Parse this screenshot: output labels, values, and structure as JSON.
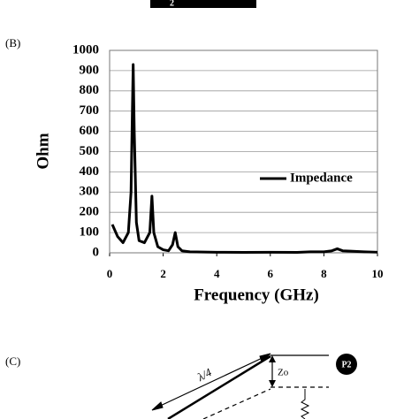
{
  "top_fragment": "2",
  "panels": {
    "b": "(B)",
    "c": "(C)"
  },
  "diagram": {
    "length_label": "λ/4",
    "impedance_label": "Zo",
    "port_label": "P2"
  },
  "chart_data": {
    "type": "line",
    "xlabel": "Frequency (GHz)",
    "ylabel": "Ohm",
    "x": [
      0.1,
      0.3,
      0.5,
      0.7,
      0.8,
      0.85,
      0.88,
      0.92,
      1.0,
      1.1,
      1.3,
      1.5,
      1.58,
      1.65,
      1.8,
      2.0,
      2.2,
      2.35,
      2.45,
      2.55,
      2.7,
      3.0,
      4.0,
      5.0,
      6.0,
      7.0,
      7.5,
      8.0,
      8.3,
      8.5,
      8.7,
      9.0,
      9.5,
      10.0
    ],
    "series": [
      {
        "name": "Impedance",
        "color": "#000000",
        "values": [
          140,
          80,
          50,
          100,
          300,
          700,
          930,
          600,
          150,
          60,
          50,
          100,
          280,
          100,
          30,
          15,
          10,
          40,
          100,
          30,
          10,
          5,
          3,
          2,
          3,
          2,
          5,
          5,
          10,
          20,
          10,
          8,
          5,
          3
        ]
      }
    ],
    "xlim": [
      0,
      10
    ],
    "xticks": [
      0,
      2,
      4,
      6,
      8,
      10
    ],
    "ylim": [
      0,
      1000
    ],
    "yticks": [
      0,
      100,
      200,
      300,
      400,
      500,
      600,
      700,
      800,
      900,
      1000
    ],
    "grid": true
  }
}
